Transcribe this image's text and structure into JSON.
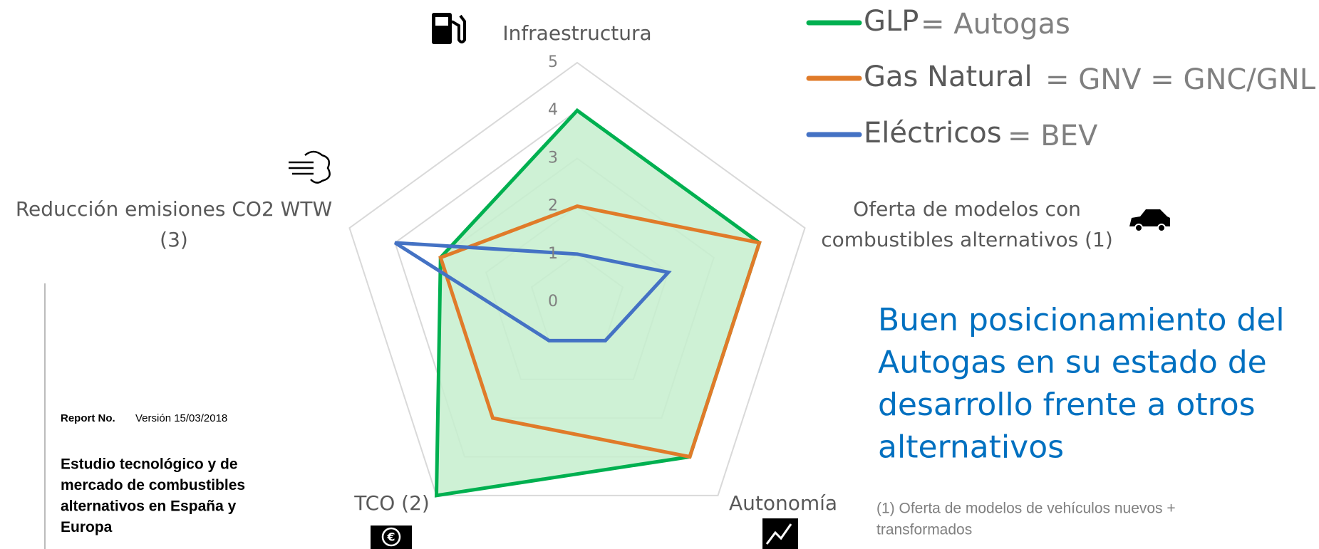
{
  "chart_data": {
    "type": "radar",
    "categories": [
      "Infraestructura",
      [
        "Oferta de modelos con",
        "combustibles alternativos (1)"
      ],
      "Autonomía",
      "TCO (2)",
      [
        "Reducción emisiones CO2 WTW",
        "(3)"
      ]
    ],
    "ylim": [
      0,
      5
    ],
    "yticks": [
      0,
      1,
      2,
      3,
      4,
      5
    ],
    "grid": true,
    "series": [
      {
        "name": "GLP",
        "color": "#00b050",
        "fill": "#c6efce",
        "values": [
          4,
          4,
          4,
          5,
          3
        ]
      },
      {
        "name": "Gas Natural",
        "color": "#e07b29",
        "values": [
          2,
          4,
          4,
          3,
          3
        ]
      },
      {
        "name": "Eléctricos",
        "color": "#4472c4",
        "values": [
          1,
          2,
          1,
          1,
          4
        ]
      }
    ],
    "legend_suffixes": [
      "= Autogas",
      "= GNV =  GNC/GNL",
      "= BEV"
    ]
  },
  "annotation": [
    "Buen posicionamiento del",
    "Autogas en su estado de",
    "desarrollo frente a otros",
    "alternativos"
  ],
  "footnote": [
    "(1) Oferta de modelos de vehículos nuevos +",
    "transformados"
  ],
  "report": {
    "label": "Report No.",
    "version": "Versión 15/03/2018",
    "title": [
      "Estudio tecnológico y de",
      "mercado de combustibles",
      "alternativos en España y",
      "Europa"
    ]
  }
}
